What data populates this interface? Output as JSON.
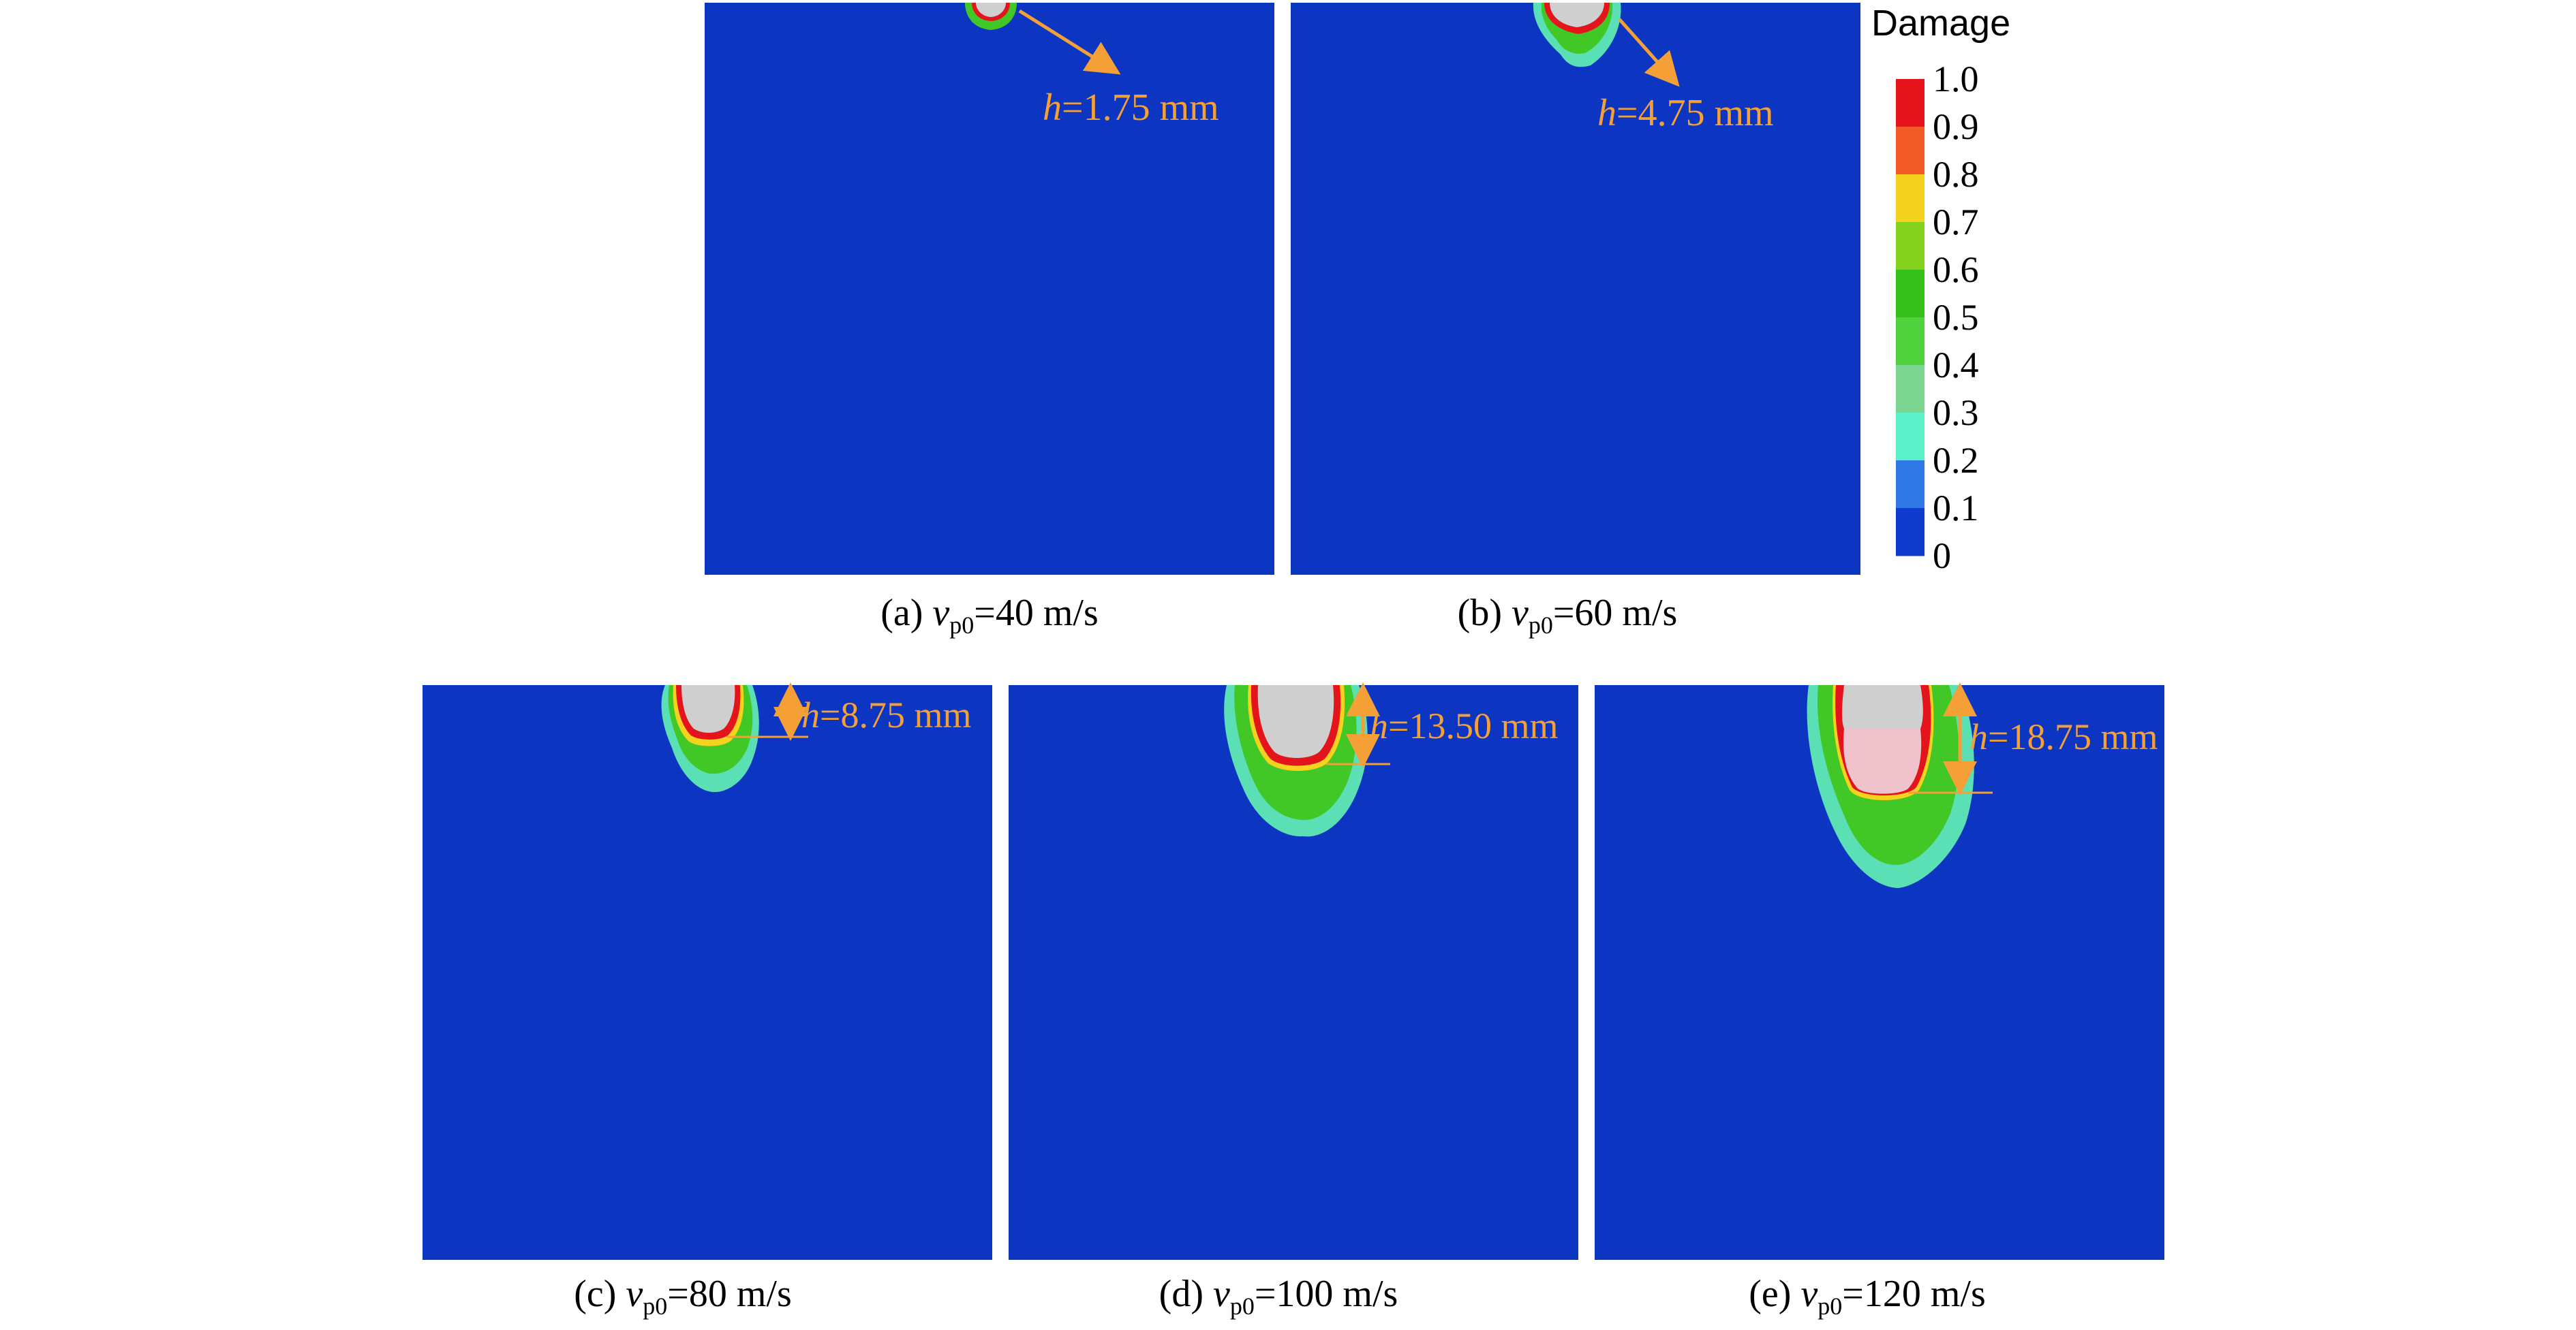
{
  "figure": {
    "legend": {
      "title": "Damage",
      "ticks": [
        "1.0",
        "0.9",
        "0.8",
        "0.7",
        "0.6",
        "0.5",
        "0.4",
        "0.3",
        "0.2",
        "0.1",
        "0"
      ],
      "band_colors": [
        "#e5141c",
        "#f25a28",
        "#f5d21e",
        "#84d21e",
        "#36c01a",
        "#50d23c",
        "#7cd690",
        "#5af0c8",
        "#2f79e6",
        "#0f3ccd"
      ]
    },
    "colors": {
      "background_field": "#0c36c2",
      "projectile": "#cfcfcf",
      "projectile_tip": "#efc2cc",
      "annotation": "#f5a036",
      "damage_high": "#e4141c",
      "damage_mid": "#f5d21e",
      "damage_low": "#41c827",
      "damage_edge": "#5ae0b4"
    },
    "panels": [
      {
        "id": "a",
        "caption_prefix": "(a) ",
        "var": "v",
        "sub": "p0",
        "caption_suffix": "=40 m/s",
        "h_var": "h",
        "h_value": "=1.75 mm",
        "depth_mm": 1.75
      },
      {
        "id": "b",
        "caption_prefix": "(b) ",
        "var": "v",
        "sub": "p0",
        "caption_suffix": "=60 m/s",
        "h_var": "h",
        "h_value": "=4.75 mm",
        "depth_mm": 4.75
      },
      {
        "id": "c",
        "caption_prefix": "(c) ",
        "var": "v",
        "sub": "p0",
        "caption_suffix": "=80 m/s",
        "h_var": "h",
        "h_value": "=8.75 mm",
        "depth_mm": 8.75
      },
      {
        "id": "d",
        "caption_prefix": "(d) ",
        "var": "v",
        "sub": "p0",
        "caption_suffix": "=100 m/s",
        "h_var": "h",
        "h_value": "=13.50 mm",
        "depth_mm": 13.5
      },
      {
        "id": "e",
        "caption_prefix": "(e) ",
        "var": "v",
        "sub": "p0",
        "caption_suffix": "=120 m/s",
        "h_var": "h",
        "h_value": "=18.75 mm",
        "depth_mm": 18.75
      }
    ]
  }
}
